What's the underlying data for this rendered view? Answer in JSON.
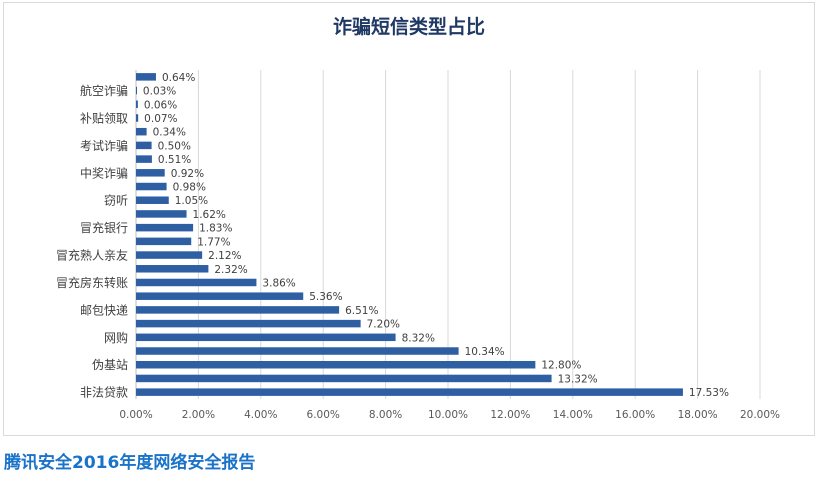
{
  "chart_data": {
    "type": "bar",
    "orientation": "horizontal",
    "title": "诈骗短信类型占比",
    "categories": [
      "非法贷款",
      "",
      "伪基站",
      "",
      "网购",
      "",
      "邮包快递",
      "",
      "冒充房东转账",
      "",
      "冒充熟人亲友",
      "",
      "冒充银行",
      "",
      "窃听",
      "",
      "中奖诈骗",
      "",
      "考试诈骗",
      "",
      "补贴领取",
      "",
      "航空诈骗",
      ""
    ],
    "values": [
      17.53,
      13.32,
      12.8,
      10.34,
      8.32,
      7.2,
      6.51,
      5.36,
      3.86,
      2.32,
      2.12,
      1.77,
      1.83,
      1.62,
      1.05,
      0.98,
      0.92,
      0.51,
      0.5,
      0.34,
      0.07,
      0.06,
      0.03,
      0.64
    ],
    "data_labels": [
      "17.53%",
      "13.32%",
      "12.80%",
      "10.34%",
      "8.32%",
      "7.20%",
      "6.51%",
      "5.36%",
      "3.86%",
      "2.32%",
      "2.12%",
      "1.77%",
      "1.83%",
      "1.62%",
      "1.05%",
      "0.98%",
      "0.92%",
      "0.51%",
      "0.50%",
      "0.34%",
      "0.07%",
      "0.06%",
      "0.03%",
      "0.64%"
    ],
    "xlim": [
      0,
      20
    ],
    "x_ticks": [
      0,
      2,
      4,
      6,
      8,
      10,
      12,
      14,
      16,
      18,
      20
    ],
    "x_tick_labels": [
      "0.00%",
      "2.00%",
      "4.00%",
      "6.00%",
      "8.00%",
      "10.00%",
      "12.00%",
      "14.00%",
      "16.00%",
      "18.00%",
      "20.00%"
    ],
    "grid": "vertical",
    "bar_color": "#2e5fa3"
  },
  "footer": {
    "text": "腾讯安全2016年度网络安全报告",
    "color": "#1a73c8"
  }
}
